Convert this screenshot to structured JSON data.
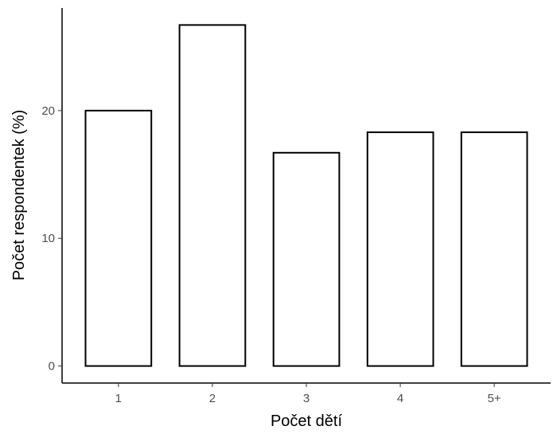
{
  "chart_data": {
    "type": "bar",
    "categories": [
      "1",
      "2",
      "3",
      "4",
      "5+"
    ],
    "values": [
      20.0,
      26.7,
      16.7,
      18.3,
      18.3
    ],
    "xlabel": "Počet dětí",
    "ylabel": "Počet respondentek (%)",
    "ylim": [
      -1.335,
      28.035
    ],
    "yticks": [
      0,
      10,
      20
    ],
    "grid": false,
    "bar_fill": "#ffffff",
    "bar_stroke": "#000000",
    "axis_color": "#000000"
  }
}
